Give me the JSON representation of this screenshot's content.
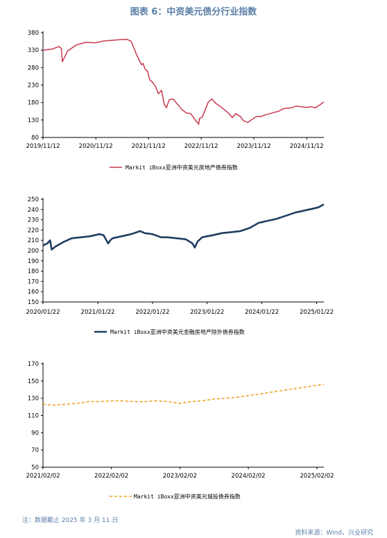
{
  "figure": {
    "title": "图表 6：中资美元债分行业指数",
    "note": "注：数据截止 2025 年 3 月 11 日",
    "source": "资料来源：Wind，兴业研究"
  },
  "chart_data": [
    {
      "type": "line",
      "title": "",
      "xlabel": "",
      "ylabel": "",
      "x_ticks": [
        "2019/11/12",
        "2020/11/12",
        "2021/11/12",
        "2022/11/12",
        "2023/11/12",
        "2024/11/12"
      ],
      "y_ticks": [
        80,
        130,
        180,
        230,
        280,
        330,
        380
      ],
      "ylim": [
        80,
        380
      ],
      "xlim": [
        "2019/11/12",
        "2025/03/11"
      ],
      "grid": false,
      "legend_position": "bottom",
      "series": [
        {
          "name": "Markit iBoxx亚洲中资美元房地产债券指数",
          "color": "#c8384f",
          "line_style": "solid",
          "x": [
            "2019/11/12",
            "2020/01/15",
            "2020/03/01",
            "2020/03/18",
            "2020/03/25",
            "2020/05/01",
            "2020/07/01",
            "2020/09/01",
            "2020/11/12",
            "2021/01/01",
            "2021/03/01",
            "2021/05/01",
            "2021/06/15",
            "2021/07/15",
            "2021/08/01",
            "2021/08/20",
            "2021/09/10",
            "2021/09/25",
            "2021/10/05",
            "2021/10/20",
            "2021/11/05",
            "2021/11/20",
            "2021/12/10",
            "2022/01/01",
            "2022/01/20",
            "2022/02/10",
            "2022/03/01",
            "2022/03/16",
            "2022/04/05",
            "2022/05/01",
            "2022/06/01",
            "2022/07/01",
            "2022/08/01",
            "2022/09/01",
            "2022/10/01",
            "2022/10/25",
            "2022/11/01",
            "2022/11/20",
            "2022/12/10",
            "2023/01/01",
            "2023/01/25",
            "2023/02/20",
            "2023/03/20",
            "2023/04/20",
            "2023/05/20",
            "2023/06/15",
            "2023/07/10",
            "2023/08/10",
            "2023/09/01",
            "2023/10/01",
            "2023/11/01",
            "2023/12/01",
            "2024/01/01",
            "2024/02/01",
            "2024/03/01",
            "2024/04/01",
            "2024/05/01",
            "2024/06/01",
            "2024/07/01",
            "2024/08/01",
            "2024/09/01",
            "2024/10/01",
            "2024/11/12",
            "2024/12/10",
            "2025/01/10",
            "2025/02/10",
            "2025/03/11"
          ],
          "y": [
            330,
            333,
            340,
            335,
            297,
            328,
            345,
            352,
            351,
            356,
            358,
            360,
            361,
            355,
            338,
            318,
            300,
            288,
            292,
            275,
            270,
            245,
            238,
            225,
            205,
            215,
            175,
            165,
            188,
            190,
            175,
            160,
            150,
            148,
            130,
            118,
            135,
            138,
            160,
            182,
            190,
            178,
            170,
            160,
            150,
            137,
            148,
            140,
            128,
            123,
            132,
            140,
            140,
            145,
            148,
            152,
            155,
            162,
            164,
            165,
            170,
            168,
            166,
            168,
            165,
            173,
            182
          ]
        }
      ]
    },
    {
      "type": "line",
      "title": "",
      "xlabel": "",
      "ylabel": "",
      "x_ticks": [
        "2020/01/22",
        "2021/01/22",
        "2022/01/22",
        "2023/01/22",
        "2024/01/22",
        "2025/01/22"
      ],
      "y_ticks": [
        150,
        160,
        170,
        180,
        190,
        200,
        210,
        220,
        230,
        240,
        250
      ],
      "ylim": [
        150,
        250
      ],
      "xlim": [
        "2020/01/22",
        "2025/03/11"
      ],
      "grid": false,
      "legend_position": "bottom",
      "series": [
        {
          "name": "Markit iBoxx亚洲中资美元金融房地产除外债券指数",
          "color": "#1f3d60",
          "line_style": "solid",
          "x": [
            "2020/01/22",
            "2020/02/20",
            "2020/03/09",
            "2020/03/20",
            "2020/04/15",
            "2020/06/01",
            "2020/08/01",
            "2020/10/01",
            "2020/12/01",
            "2021/02/01",
            "2021/03/01",
            "2021/04/01",
            "2021/04/15",
            "2021/05/01",
            "2021/07/01",
            "2021/09/01",
            "2021/11/01",
            "2021/12/01",
            "2022/01/22",
            "2022/03/01",
            "2022/03/20",
            "2022/05/01",
            "2022/07/01",
            "2022/09/01",
            "2022/10/15",
            "2022/10/31",
            "2022/11/20",
            "2022/12/20",
            "2023/01/22",
            "2023/03/01",
            "2023/05/01",
            "2023/07/01",
            "2023/09/01",
            "2023/11/01",
            "2024/01/01",
            "2024/03/01",
            "2024/05/01",
            "2024/07/01",
            "2024/09/01",
            "2024/11/01",
            "2025/01/01",
            "2025/02/01",
            "2025/03/11"
          ],
          "y": [
            205,
            207,
            210,
            201,
            204,
            208,
            212,
            213,
            214,
            216,
            215,
            207,
            210,
            212,
            214,
            216,
            219,
            217,
            216,
            214,
            213,
            213,
            212,
            211,
            207,
            203,
            209,
            213,
            214,
            215,
            217,
            218,
            219,
            222,
            227,
            229,
            231,
            234,
            237,
            239,
            241,
            242,
            245
          ]
        }
      ]
    },
    {
      "type": "line",
      "title": "",
      "xlabel": "",
      "ylabel": "",
      "x_ticks": [
        "2021/02/02",
        "2022/02/02",
        "2023/02/02",
        "2024/02/02",
        "2025/02/02"
      ],
      "y_ticks": [
        50,
        70,
        90,
        110,
        130,
        150,
        170
      ],
      "ylim": [
        50,
        170
      ],
      "xlim": [
        "2021/02/02",
        "2025/03/11"
      ],
      "grid": false,
      "legend_position": "bottom",
      "series": [
        {
          "name": "Markit iBoxx亚洲中资美元城投债券指数",
          "color": "#f0a020",
          "line_style": "dashed",
          "x": [
            "2021/02/02",
            "2021/04/01",
            "2021/06/01",
            "2021/08/01",
            "2021/10/01",
            "2021/12/01",
            "2022/02/02",
            "2022/04/01",
            "2022/06/01",
            "2022/08/01",
            "2022/10/01",
            "2022/12/01",
            "2023/01/05",
            "2023/02/02",
            "2023/04/01",
            "2023/06/01",
            "2023/08/01",
            "2023/10/01",
            "2023/12/01",
            "2024/02/02",
            "2024/04/01",
            "2024/06/01",
            "2024/08/01",
            "2024/10/01",
            "2024/12/01",
            "2025/02/02",
            "2025/03/11"
          ],
          "y": [
            123,
            122,
            123,
            124,
            126,
            126,
            127,
            127,
            126,
            126,
            127,
            126,
            125,
            124,
            126,
            127,
            129,
            130,
            131,
            133,
            135,
            137,
            139,
            141,
            143,
            145,
            146
          ]
        }
      ]
    }
  ]
}
